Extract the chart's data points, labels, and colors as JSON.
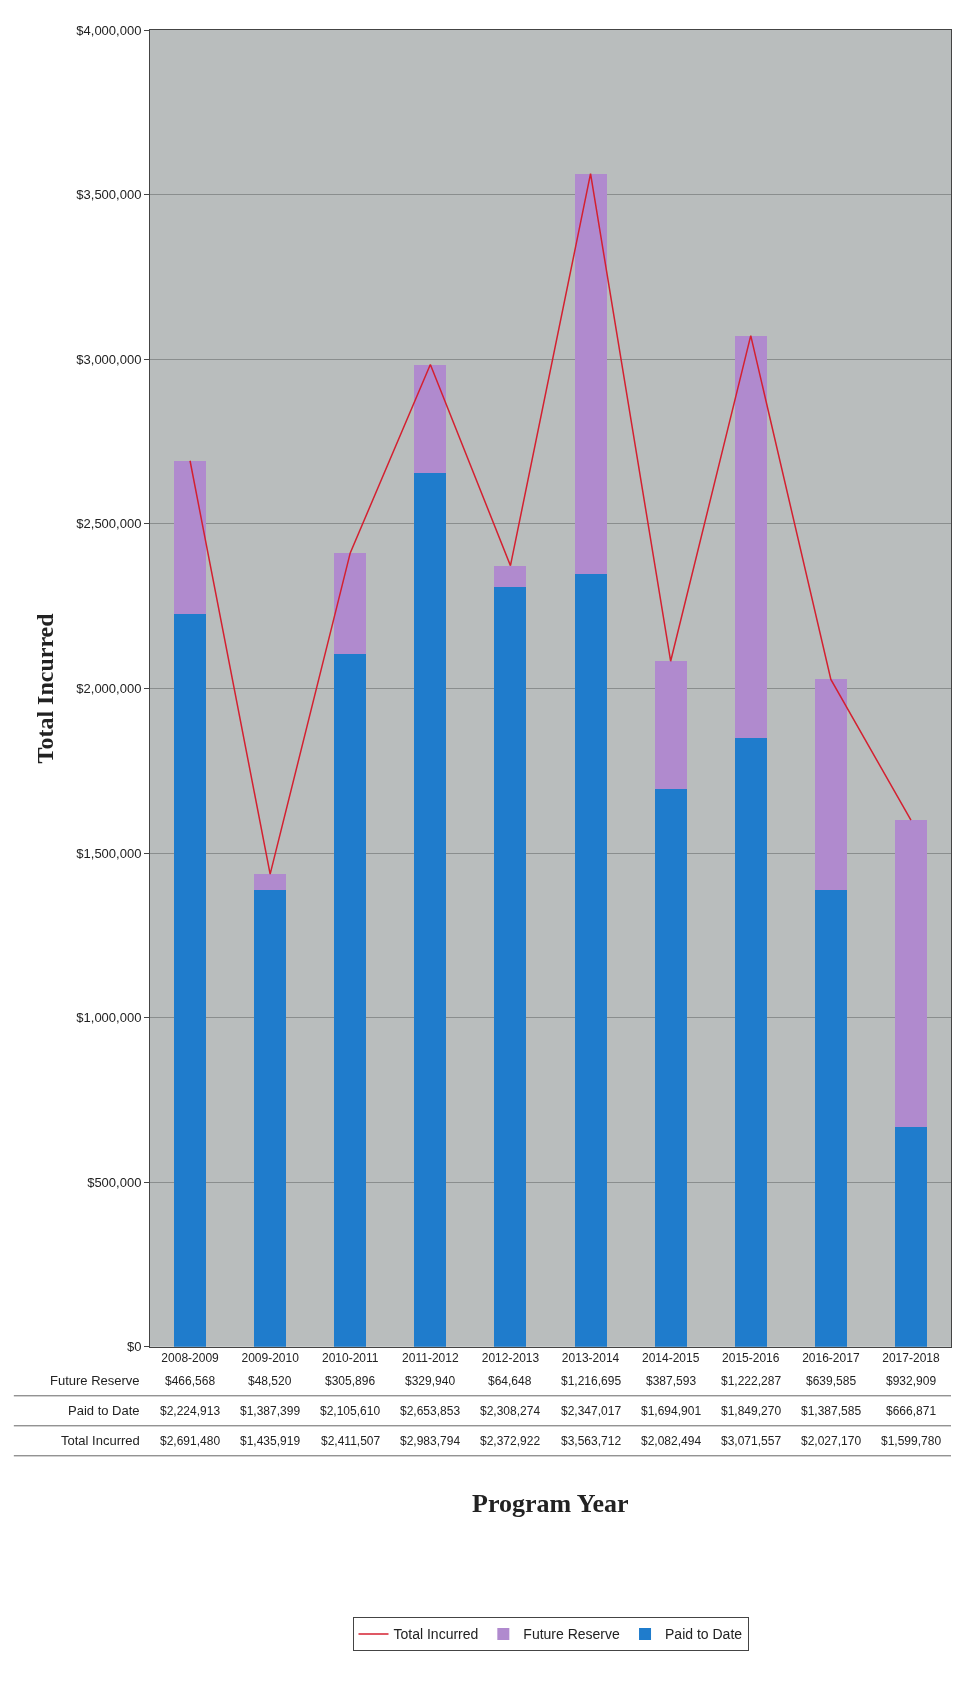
{
  "chart_data": {
    "type": "bar",
    "stacked": true,
    "xlabel": "Program Year",
    "ylabel": "Total Incurred",
    "categories": [
      "2008-2009",
      "2009-2010",
      "2010-2011",
      "2011-2012",
      "2012-2013",
      "2013-2014",
      "2014-2015",
      "2015-2016",
      "2016-2017",
      "2017-2018"
    ],
    "series": [
      {
        "name": "Paid to Date",
        "color": "#1f7ccc",
        "values": [
          2224913,
          1387399,
          2105610,
          2653853,
          2308274,
          2347017,
          1694901,
          1849270,
          1387585,
          666871
        ],
        "value_labels": [
          "$2,224,913",
          "$1,387,399",
          "$2,105,610",
          "$2,653,853",
          "$2,308,274",
          "$2,347,017",
          "$1,694,901",
          "$1,849,270",
          "$1,387,585",
          "$666,871"
        ]
      },
      {
        "name": "Future Reserve",
        "color": "#b08ace",
        "values": [
          466568,
          48520,
          305896,
          329940,
          64648,
          1216695,
          387593,
          1222287,
          639585,
          932909
        ],
        "value_labels": [
          "$466,568",
          "$48,520",
          "$305,896",
          "$329,940",
          "$64,648",
          "$1,216,695",
          "$387,593",
          "$1,222,287",
          "$639,585",
          "$932,909"
        ]
      },
      {
        "name": "Total Incurred",
        "type": "line",
        "color": "#d42030",
        "values": [
          2691480,
          1435919,
          2411507,
          2983794,
          2372922,
          3563712,
          2082494,
          3071557,
          2027170,
          1599780
        ],
        "value_labels": [
          "$2,691,480",
          "$1,435,919",
          "$2,411,507",
          "$2,983,794",
          "$2,372,922",
          "$3,563,712",
          "$2,082,494",
          "$3,071,557",
          "$2,027,170",
          "$1,599,780"
        ]
      }
    ],
    "ylim": [
      0,
      4000000
    ],
    "yticks": [
      {
        "value": 0,
        "label": "$0"
      },
      {
        "value": 500000,
        "label": "$500,000"
      },
      {
        "value": 1000000,
        "label": "$1,000,000"
      },
      {
        "value": 1500000,
        "label": "$1,500,000"
      },
      {
        "value": 2000000,
        "label": "$2,000,000"
      },
      {
        "value": 2500000,
        "label": "$2,500,000"
      },
      {
        "value": 3000000,
        "label": "$3,000,000"
      },
      {
        "value": 3500000,
        "label": "$3,500,000"
      },
      {
        "value": 4000000,
        "label": "$4,000,000"
      }
    ],
    "grid": "y",
    "legend": "bottom",
    "marker": "none"
  }
}
